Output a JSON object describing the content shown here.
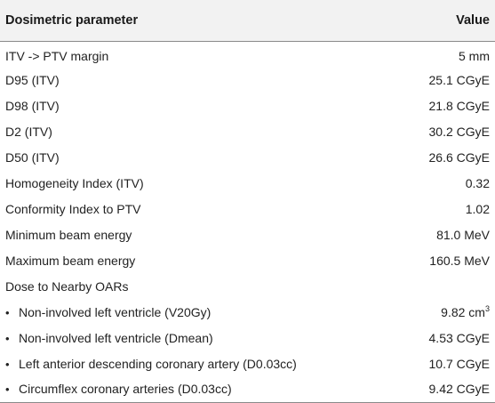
{
  "table": {
    "headers": {
      "param": "Dosimetric parameter",
      "value": "Value"
    },
    "rows": [
      {
        "param": "ITV -> PTV margin",
        "value": "5 mm"
      },
      {
        "param": "D95 (ITV)",
        "value": "25.1 CGyE"
      },
      {
        "param": "D98 (ITV)",
        "value": "21.8 CGyE"
      },
      {
        "param": "D2 (ITV)",
        "value": "30.2 CGyE"
      },
      {
        "param": "D50 (ITV)",
        "value": "26.6 CGyE"
      },
      {
        "param": "Homogeneity Index (ITV)",
        "value": "0.32"
      },
      {
        "param": "Conformity Index to PTV",
        "value": "1.02"
      },
      {
        "param": "Minimum beam energy",
        "value": "81.0 MeV"
      },
      {
        "param": "Maximum beam energy",
        "value": "160.5 MeV"
      }
    ],
    "oar_section": {
      "label": "Dose to Nearby OARs",
      "bullet": "•",
      "items": [
        {
          "param": "Non-involved left ventricle (V20Gy)",
          "value": "9.82 cm",
          "value_sup": "3"
        },
        {
          "param": "Non-involved left ventricle (Dmean)",
          "value": "4.53 CGyE"
        },
        {
          "param": "Left anterior descending coronary artery (D0.03cc)",
          "value": "10.7 CGyE"
        },
        {
          "param": "Circumflex coronary arteries (D0.03cc)",
          "value": "9.42 CGyE"
        }
      ]
    }
  }
}
